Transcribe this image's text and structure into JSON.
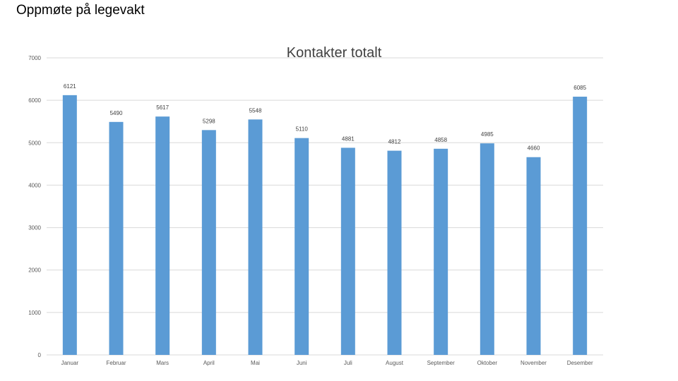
{
  "slide": {
    "title": "Oppmøte på legevakt"
  },
  "chart_data": {
    "type": "bar",
    "title": "Kontakter totalt",
    "xlabel": "",
    "ylabel": "",
    "ylim": [
      0,
      7000
    ],
    "yticks": [
      0,
      1000,
      2000,
      3000,
      4000,
      5000,
      6000,
      7000
    ],
    "grid": true,
    "legend": "none",
    "bar_color": "#5b9bd5",
    "categories": [
      "Januar",
      "Februar",
      "Mars",
      "April",
      "Mai",
      "Juni",
      "Juli",
      "August",
      "September",
      "Oktober",
      "November",
      "Desember"
    ],
    "values": [
      6121,
      5490,
      5617,
      5298,
      5548,
      5110,
      4881,
      4812,
      4858,
      4985,
      4660,
      6085
    ]
  }
}
